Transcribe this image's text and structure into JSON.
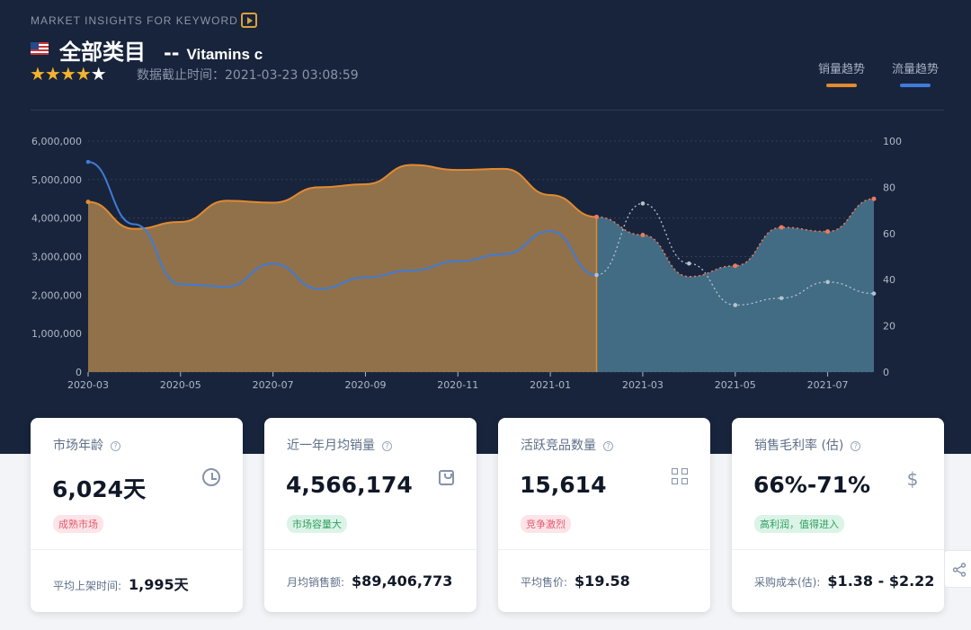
{
  "header": {
    "kicker": "MARKET INSIGHTS FOR KEYWORD",
    "category": "全部类目",
    "separator": "--",
    "keyword": "Vitamins c",
    "stars": "★★★★",
    "half_star": "★",
    "updated": "数据截止时间：2021-03-23 03:08:59",
    "legend": [
      {
        "label": "销量趋势",
        "color": "#e28a32"
      },
      {
        "label": "流量趋势",
        "color": "#3f7bd7"
      }
    ]
  },
  "chart_data": {
    "type": "area",
    "x": [
      "2020-03",
      "2020-04",
      "2020-05",
      "2020-06",
      "2020-07",
      "2020-08",
      "2020-09",
      "2020-10",
      "2020-11",
      "2020-12",
      "2021-01",
      "2021-02",
      "2021-03",
      "2021-04",
      "2021-05",
      "2021-06",
      "2021-07",
      "2021-08"
    ],
    "x_tick_labels": [
      "2020-03",
      "2020-05",
      "2020-07",
      "2020-09",
      "2020-11",
      "2021-01",
      "2021-03",
      "2021-05",
      "2021-07"
    ],
    "left_axis": {
      "ticks": [
        "0",
        "1,000,000",
        "2,000,000",
        "3,000,000",
        "4,000,000",
        "5,000,000",
        "6,000,000"
      ],
      "ylim": [
        0,
        6000000
      ]
    },
    "right_axis": {
      "ticks": [
        "0",
        "20",
        "40",
        "60",
        "80",
        "100"
      ],
      "ylim": [
        0,
        100
      ]
    },
    "forecast_start": "2021-02",
    "series": [
      {
        "color": "#e28a32",
        "axis": "left",
        "values": [
          4420000,
          3720000,
          3900000,
          4450000,
          4400000,
          4800000,
          4880000,
          5380000,
          5250000,
          5280000,
          4600000,
          4030000,
          3560000,
          2480000,
          2760000,
          3760000,
          3650000,
          4500000
        ]
      },
      {
        "color": "#3f7bd7",
        "axis": "right",
        "values": [
          91,
          64,
          38,
          37,
          47,
          36,
          41,
          44,
          48,
          51,
          61,
          42,
          73,
          47,
          29,
          32,
          39,
          34
        ]
      }
    ]
  },
  "cards": [
    {
      "title": "市场年龄",
      "value": "6,024天",
      "badge": "成熟市场",
      "tone": "red",
      "icon": "clock-icon",
      "foot_label": "平均上架时间:",
      "foot_value": "1,995天"
    },
    {
      "title": "近一年月均销量",
      "value": "4,566,174",
      "badge": "市场容量大",
      "tone": "green",
      "icon": "shopping-bag-icon",
      "foot_label": "月均销售额:",
      "foot_value": "$89,406,773"
    },
    {
      "title": "活跃竞品数量",
      "value": "15,614",
      "badge": "竞争激烈",
      "tone": "red",
      "icon": "grid-icon",
      "foot_label": "平均售价:",
      "foot_value": "$19.58"
    },
    {
      "title": "销售毛利率 (估)",
      "value": "66%-71%",
      "badge": "高利润，值得进入",
      "tone": "green",
      "icon": "dollar-icon",
      "foot_label": "采购成本(估):",
      "foot_value": "$1.38 - $2.22"
    }
  ]
}
